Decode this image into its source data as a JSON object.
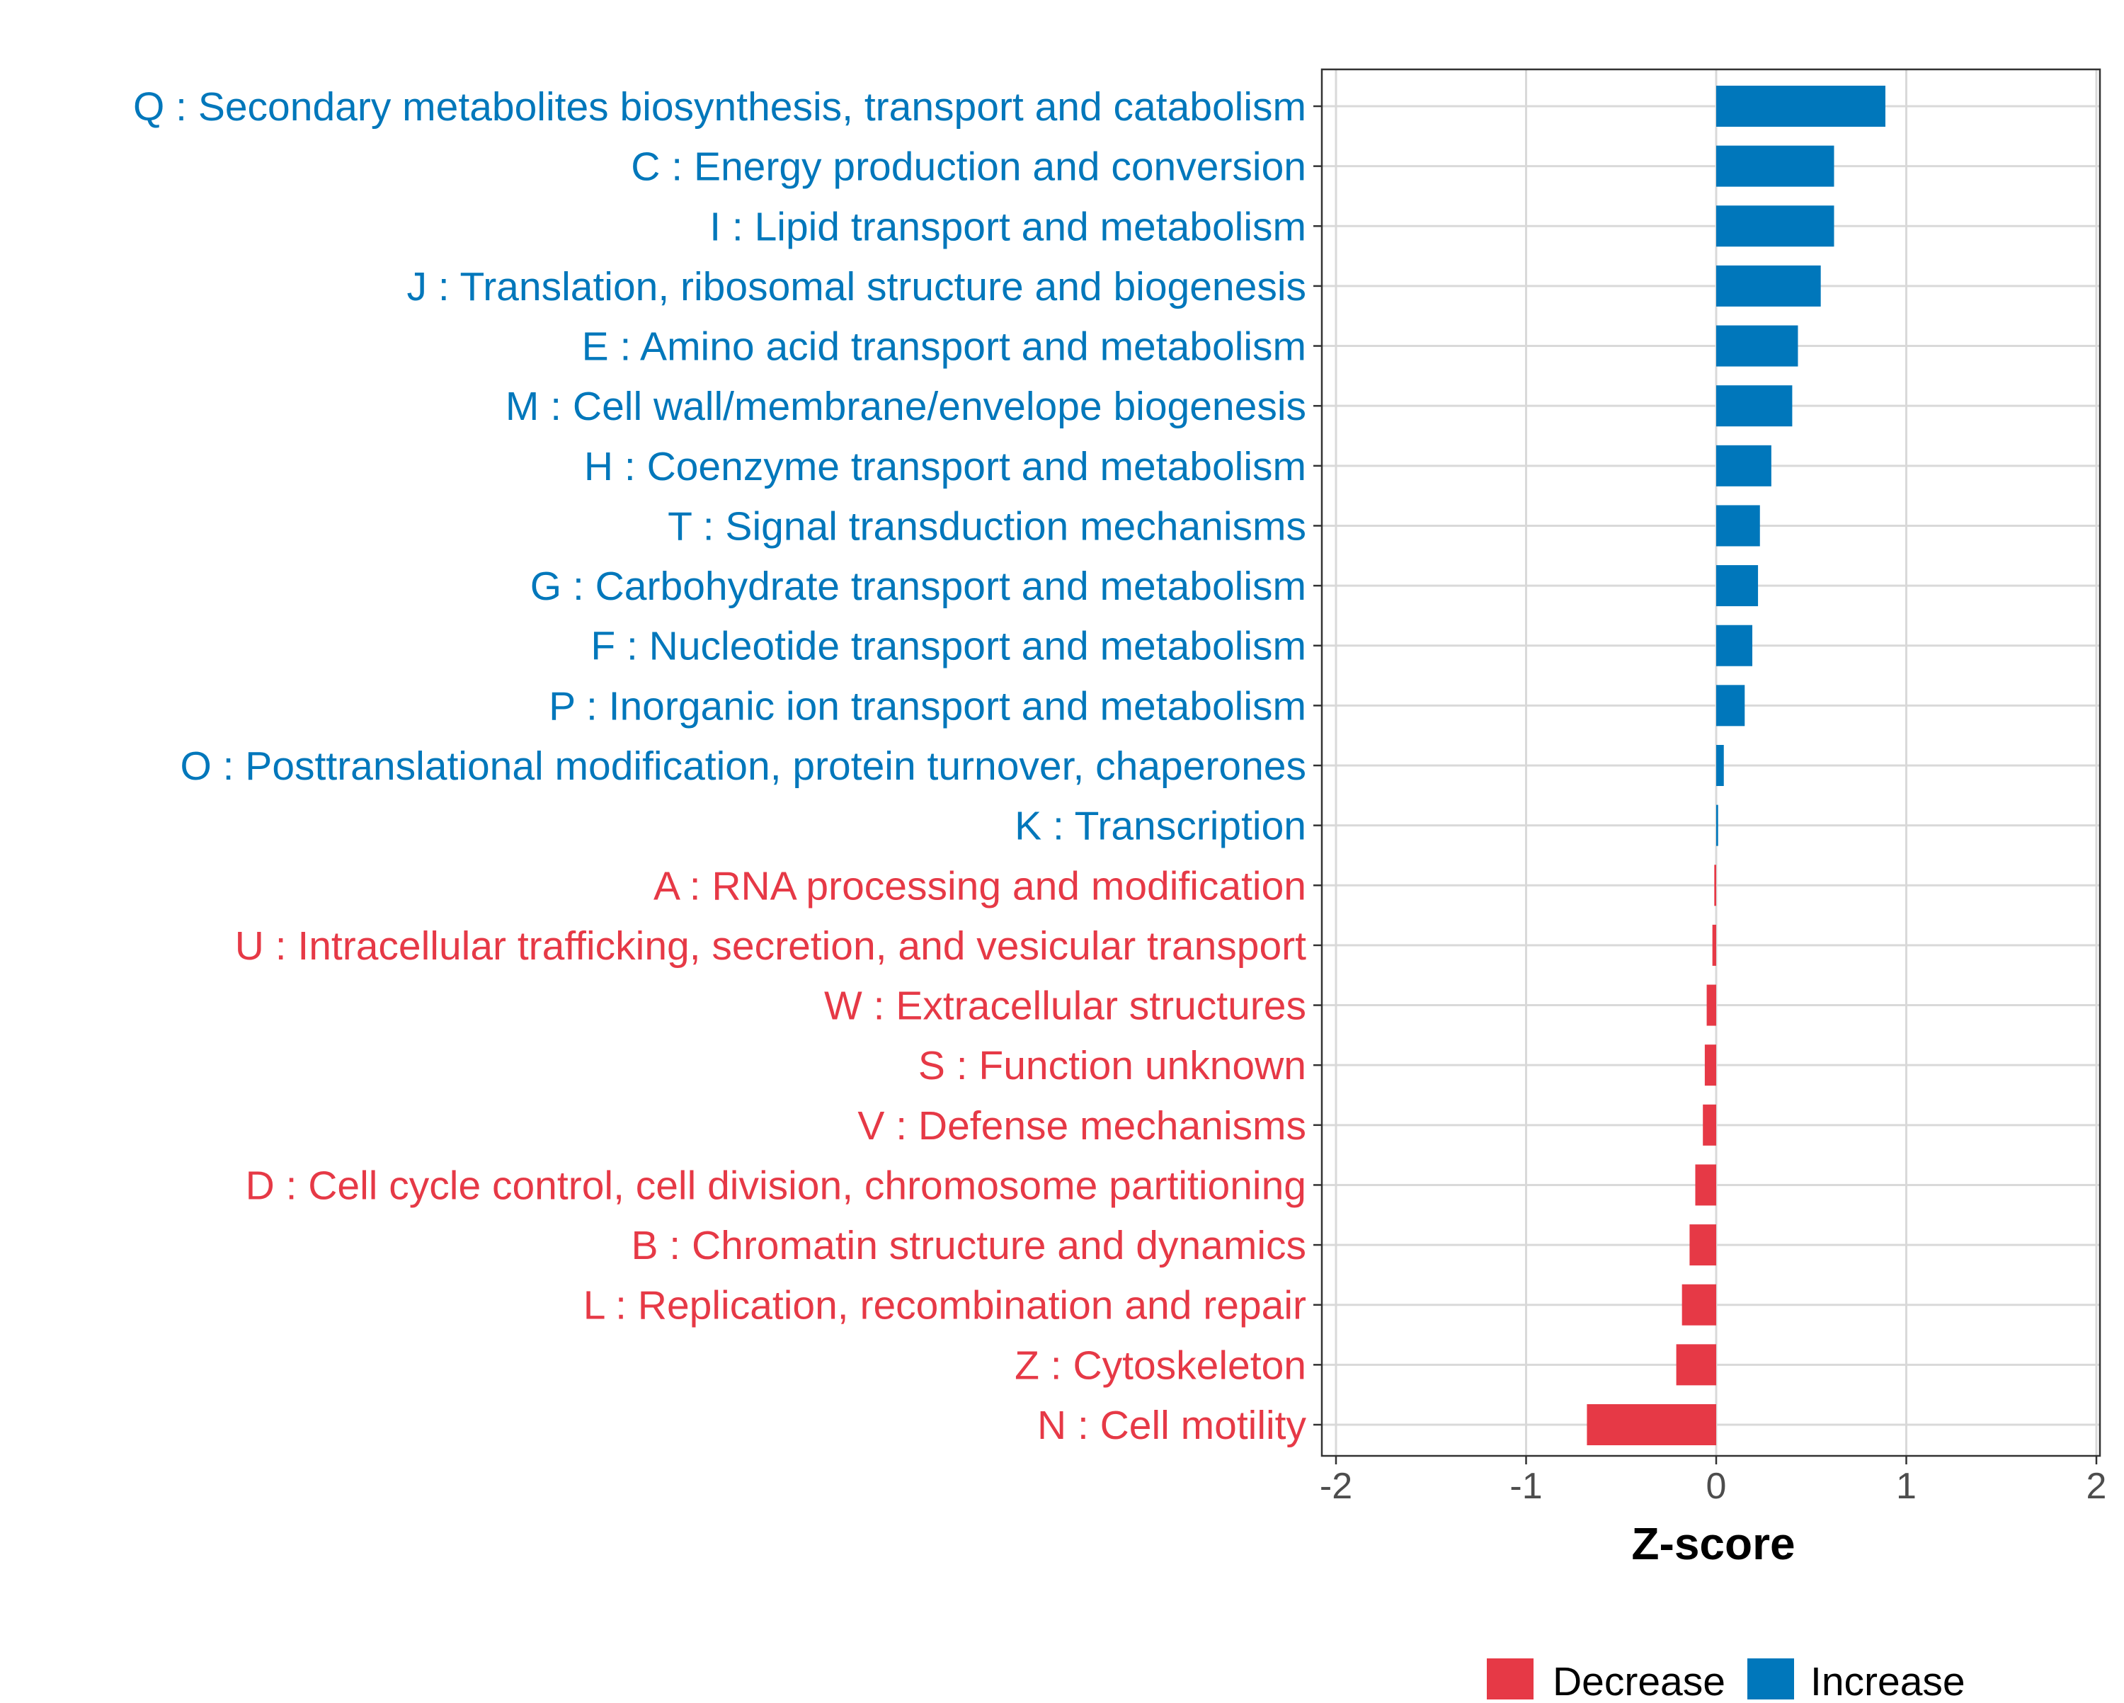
{
  "chart_data": {
    "type": "bar",
    "orientation": "horizontal",
    "title": "",
    "xlabel": "Z-score",
    "ylabel": "",
    "xlim": [
      -2,
      2
    ],
    "xticks": [
      -2,
      -1,
      0,
      1,
      2
    ],
    "grid": true,
    "legend_position": "bottom",
    "colors": {
      "Decrease": "#E63946",
      "Increase": "#0077BB"
    },
    "legend": [
      "Decrease",
      "Increase"
    ],
    "categories": [
      "Q : Secondary metabolites biosynthesis, transport and catabolism",
      "C : Energy production and conversion",
      "I : Lipid transport and metabolism",
      "J : Translation, ribosomal structure and biogenesis",
      "E : Amino acid transport and metabolism",
      "M : Cell wall/membrane/envelope biogenesis",
      "H : Coenzyme transport and metabolism",
      "T : Signal transduction mechanisms",
      "G : Carbohydrate transport and metabolism",
      "F : Nucleotide transport and metabolism",
      "P : Inorganic ion transport and metabolism",
      "O : Posttranslational modification, protein turnover, chaperones",
      "K : Transcription",
      "A : RNA processing and modification",
      "U : Intracellular trafficking, secretion, and vesicular transport",
      "W : Extracellular structures",
      "S : Function unknown",
      "V : Defense mechanisms",
      "D : Cell cycle control, cell division, chromosome partitioning",
      "B : Chromatin structure and dynamics",
      "L : Replication, recombination and repair",
      "Z : Cytoskeleton",
      "N : Cell motility"
    ],
    "values": [
      0.89,
      0.62,
      0.62,
      0.55,
      0.43,
      0.4,
      0.29,
      0.23,
      0.22,
      0.19,
      0.15,
      0.04,
      0.01,
      -0.01,
      -0.02,
      -0.05,
      -0.06,
      -0.07,
      -0.11,
      -0.14,
      -0.18,
      -0.21,
      -0.68
    ],
    "groups": [
      "Increase",
      "Increase",
      "Increase",
      "Increase",
      "Increase",
      "Increase",
      "Increase",
      "Increase",
      "Increase",
      "Increase",
      "Increase",
      "Increase",
      "Increase",
      "Decrease",
      "Decrease",
      "Decrease",
      "Decrease",
      "Decrease",
      "Decrease",
      "Decrease",
      "Decrease",
      "Decrease",
      "Decrease"
    ]
  }
}
